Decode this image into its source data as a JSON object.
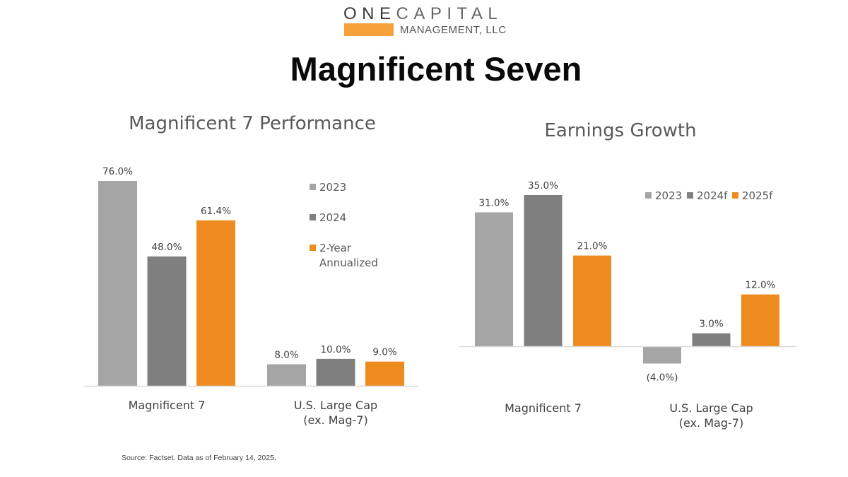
{
  "logo": {
    "word_dark": "ONE",
    "word_light": "CAPITAL",
    "subtitle": "MANAGEMENT, LLC",
    "accent_color": "#F7A13B"
  },
  "page_title": "Magnificent Seven",
  "source": "Source: Factset.  Data as of February 14, 2025.",
  "chart_data": [
    {
      "type": "bar",
      "title": "Magnificent 7 Performance",
      "categories": [
        [
          "Magnificent 7"
        ],
        [
          "U.S. Large Cap",
          "(ex. Mag-7)"
        ]
      ],
      "series": [
        {
          "name": "2023",
          "color": "#A5A5A5",
          "values": [
            76.0,
            8.0
          ],
          "labels": [
            "76.0%",
            "8.0%"
          ]
        },
        {
          "name": "2024",
          "color": "#7F7F7F",
          "values": [
            48.0,
            10.0
          ],
          "labels": [
            "48.0%",
            "10.0%"
          ]
        },
        {
          "name": "2-Year Annualized",
          "name_lines": [
            "2-Year",
            "Annualized"
          ],
          "color": "#EE8B1F",
          "values": [
            61.4,
            9.0
          ],
          "labels": [
            "61.4%",
            "9.0%"
          ]
        }
      ],
      "ylim": [
        0,
        76
      ],
      "grid": false,
      "legend_position": "right, vertical"
    },
    {
      "type": "bar",
      "title": "Earnings Growth",
      "categories": [
        [
          "Magnificent 7"
        ],
        [
          "U.S. Large Cap",
          "(ex. Mag-7)"
        ]
      ],
      "series": [
        {
          "name": "2023",
          "color": "#A5A5A5",
          "values": [
            31.0,
            -4.0
          ],
          "labels": [
            "31.0%",
            "(4.0%)"
          ]
        },
        {
          "name": "2024f",
          "color": "#7F7F7F",
          "values": [
            35.0,
            3.0
          ],
          "labels": [
            "35.0%",
            "3.0%"
          ]
        },
        {
          "name": "2025f",
          "color": "#EE8B1F",
          "values": [
            21.0,
            12.0
          ],
          "labels": [
            "21.0%",
            "12.0%"
          ]
        }
      ],
      "ylim": [
        -4,
        35
      ],
      "grid": false,
      "legend_position": "top-right, horizontal"
    }
  ]
}
